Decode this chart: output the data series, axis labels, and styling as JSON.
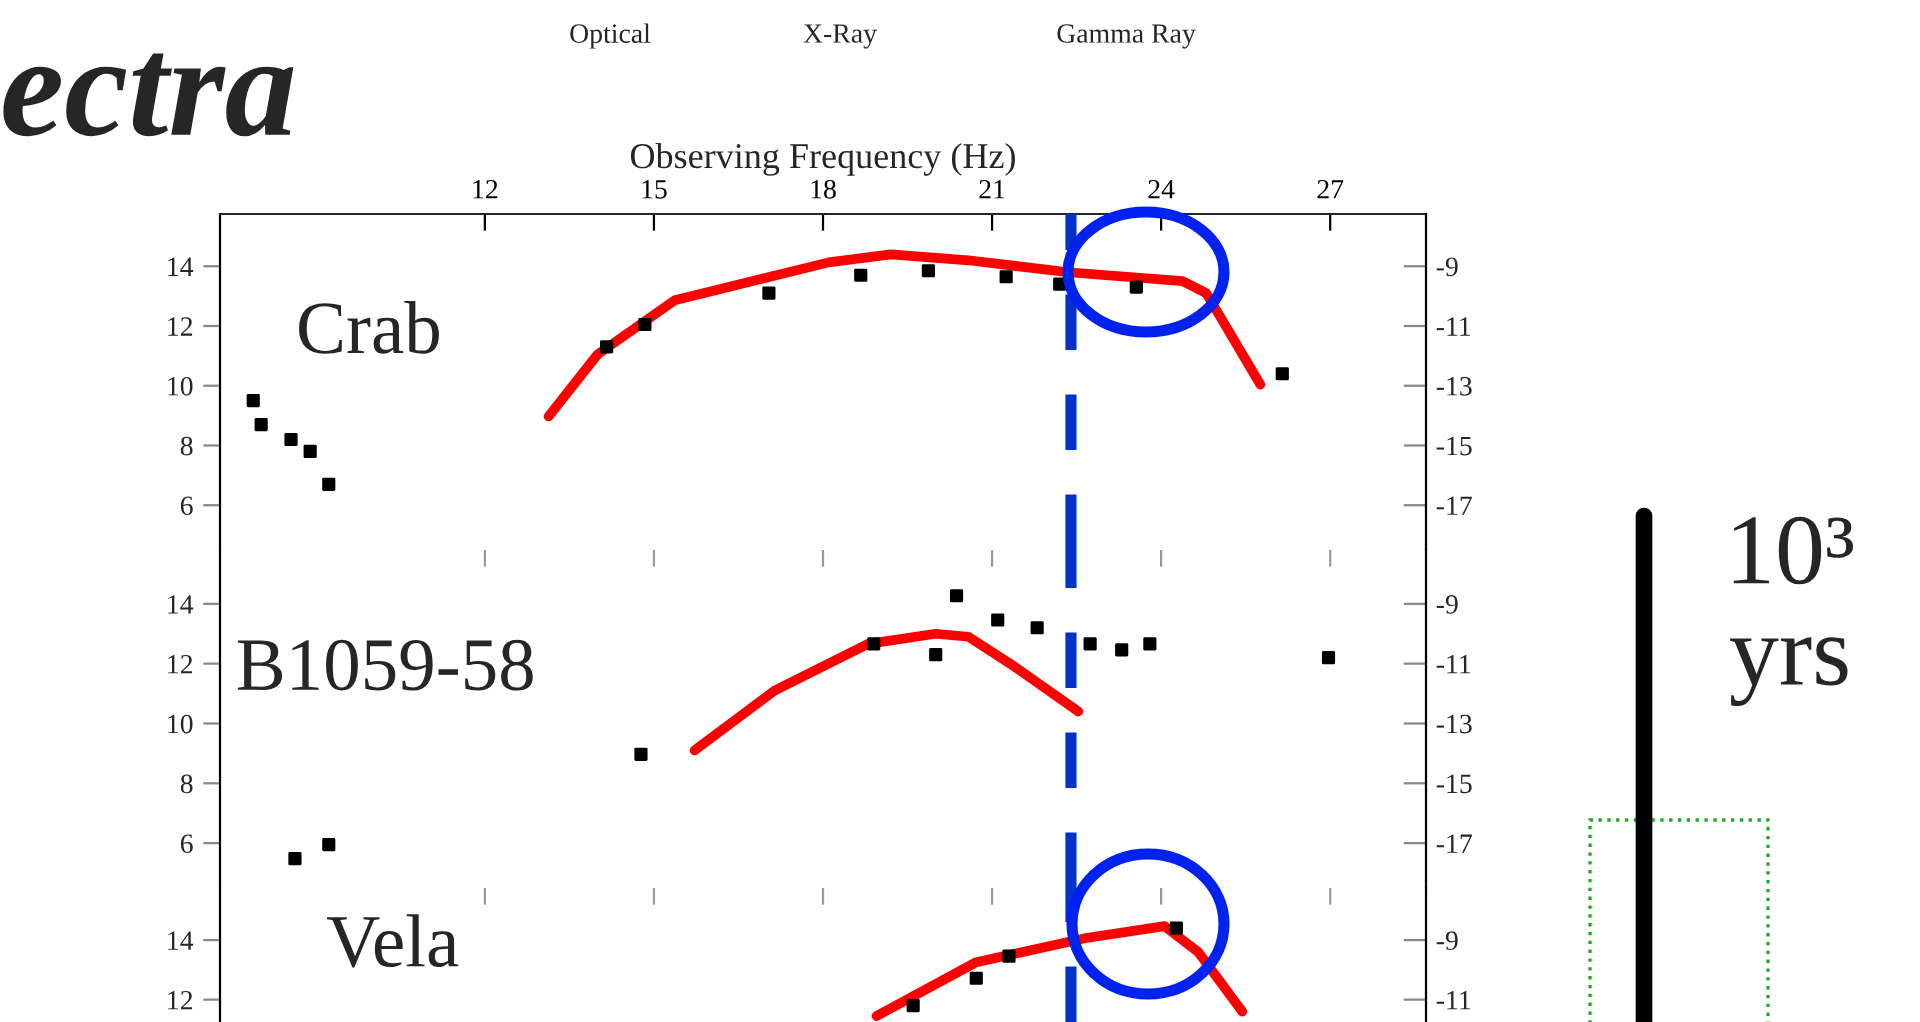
{
  "chart_data": [
    {
      "type": "line",
      "title": "ectra",
      "xlabel": "Observing Frequency (Hz)",
      "xlim": [
        7.3,
        28.7
      ],
      "xticks": [
        12,
        15,
        18,
        21,
        24,
        27
      ],
      "ylim": [
        4.5,
        15.75
      ],
      "yticks": [
        6,
        8,
        10,
        12,
        14
      ],
      "y2lim": [
        -18.5,
        -7.25
      ],
      "y2ticks": [
        -17,
        -15,
        -13,
        -11,
        -9
      ],
      "grid": false,
      "annotations": [
        "Crab",
        "Optical",
        "X-Ray",
        "Gamma Ray"
      ],
      "ref_lines": [
        {
          "axis": "x",
          "value": 22.4,
          "color": "#0033cc",
          "line_style": "dashed"
        }
      ],
      "series": [
        {
          "color": "#ff0000",
          "marker": "none",
          "x": [
            13.13,
            14.0,
            15.37,
            18.1,
            19.2,
            20.58,
            22.35,
            24.38,
            24.8,
            25.76
          ],
          "values": [
            8.97,
            11.05,
            12.86,
            14.13,
            14.4,
            14.2,
            13.8,
            13.5,
            13.1,
            10.04
          ]
        },
        {
          "type": "scatter",
          "color": "#000000",
          "marker": "square",
          "x": [
            7.89,
            8.03,
            8.56,
            8.9,
            9.23,
            14.16,
            14.84,
            17.04,
            18.67,
            19.87,
            21.25,
            22.2,
            23.56,
            26.15
          ],
          "values": [
            9.5,
            8.7,
            8.2,
            7.8,
            6.7,
            11.3,
            12.05,
            13.1,
            13.7,
            13.85,
            13.65,
            13.4,
            13.3,
            10.4
          ]
        }
      ]
    },
    {
      "type": "line",
      "xlim": [
        7.3,
        28.7
      ],
      "xticks": [
        12,
        15,
        18,
        21,
        24,
        27
      ],
      "ylim": [
        4.5,
        15.8
      ],
      "yticks": [
        6,
        8,
        10,
        12,
        14
      ],
      "y2lim": [
        -18.5,
        -7.2
      ],
      "y2ticks": [
        -17,
        -15,
        -13,
        -11,
        -9
      ],
      "tick_labels": "y",
      "grid": false,
      "annotations": [
        "B1059-58"
      ],
      "ref_lines": [
        {
          "axis": "x",
          "value": 22.4,
          "color": "#0033cc",
          "line_style": "dashed"
        }
      ],
      "series": [
        {
          "color": "#ff0000",
          "marker": "none",
          "x": [
            15.72,
            17.14,
            18.8,
            20.0,
            20.58,
            21.4,
            22.53
          ],
          "values": [
            9.1,
            11.1,
            12.66,
            13.0,
            12.9,
            11.9,
            10.4
          ]
        },
        {
          "type": "scatter",
          "color": "#000000",
          "marker": "square",
          "x": [
            8.63,
            9.23,
            14.77,
            18.9,
            20.0,
            20.37,
            21.1,
            21.8,
            22.74,
            23.3,
            23.8,
            26.97
          ],
          "values": [
            5.48,
            5.95,
            8.97,
            12.66,
            12.3,
            14.27,
            13.46,
            13.2,
            12.66,
            12.46,
            12.66,
            12.2
          ]
        }
      ]
    },
    {
      "type": "line",
      "xlim": [
        7.3,
        28.7
      ],
      "xticks": [
        12,
        15,
        18,
        21,
        24,
        27
      ],
      "ylim": [
        11.25,
        15.75
      ],
      "yticks": [
        12,
        14
      ],
      "y2lim": [
        -11.75,
        -7.25
      ],
      "y2ticks": [
        -11,
        -9
      ],
      "tick_labels": "y",
      "grid": false,
      "annotations": [
        "Vela",
        "10³\nyrs"
      ],
      "ref_lines": [
        {
          "axis": "x",
          "value": 22.4,
          "color": "#0033cc",
          "line_style": "dashed"
        }
      ],
      "series": [
        {
          "color": "#ff0000",
          "marker": "none",
          "x": [
            18.95,
            20.72,
            22.67,
            24.06,
            24.66,
            25.44
          ],
          "values": [
            11.45,
            13.26,
            14.07,
            14.47,
            13.6,
            11.6
          ]
        },
        {
          "type": "scatter",
          "color": "#000000",
          "marker": "square",
          "x": [
            19.6,
            20.72,
            21.3,
            24.27
          ],
          "values": [
            11.8,
            12.72,
            13.46,
            14.4
          ]
        }
      ]
    }
  ]
}
